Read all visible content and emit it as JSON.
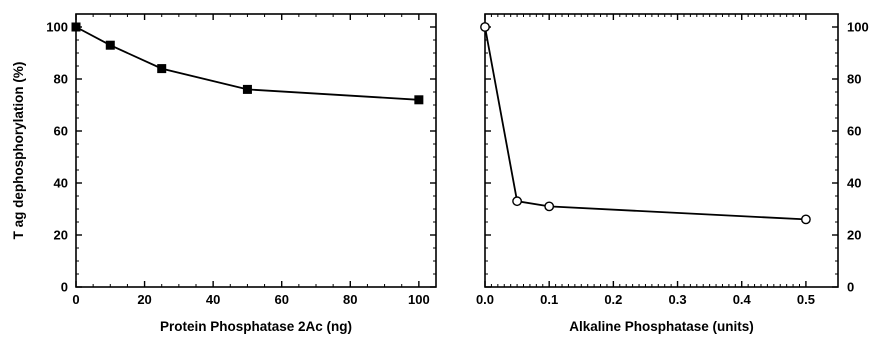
{
  "chart_data": [
    {
      "type": "line",
      "panel": "left",
      "xlabel": "Protein Phosphatase 2Ac (ng)",
      "ylabel": "T ag dephosphorylation (%)",
      "xlim": [
        0,
        105
      ],
      "ylim": [
        0,
        105
      ],
      "xticks": [
        "0",
        "20",
        "40",
        "60",
        "80",
        "100"
      ],
      "yticks": [
        "0",
        "20",
        "40",
        "60",
        "80",
        "100"
      ],
      "marker": "filled-square",
      "series": [
        {
          "x": [
            0,
            10,
            25,
            50,
            100
          ],
          "y": [
            100,
            93,
            84,
            76,
            72
          ]
        }
      ],
      "grid": false,
      "y_axis_side": "left"
    },
    {
      "type": "line",
      "panel": "right",
      "xlabel": "Alkaline Phosphatase (units)",
      "ylabel": "",
      "xlim": [
        0,
        0.55
      ],
      "ylim": [
        0,
        105
      ],
      "xticks": [
        "0.0",
        "0.1",
        "0.2",
        "0.3",
        "0.4",
        "0.5"
      ],
      "yticks": [
        "0",
        "20",
        "40",
        "60",
        "80",
        "100"
      ],
      "marker": "open-circle",
      "series": [
        {
          "x": [
            0,
            0.05,
            0.1,
            0.5
          ],
          "y": [
            100,
            33,
            31,
            26
          ]
        }
      ],
      "grid": false,
      "y_axis_side": "right"
    }
  ],
  "colors": {
    "ink": "#000000",
    "background": "#ffffff"
  }
}
